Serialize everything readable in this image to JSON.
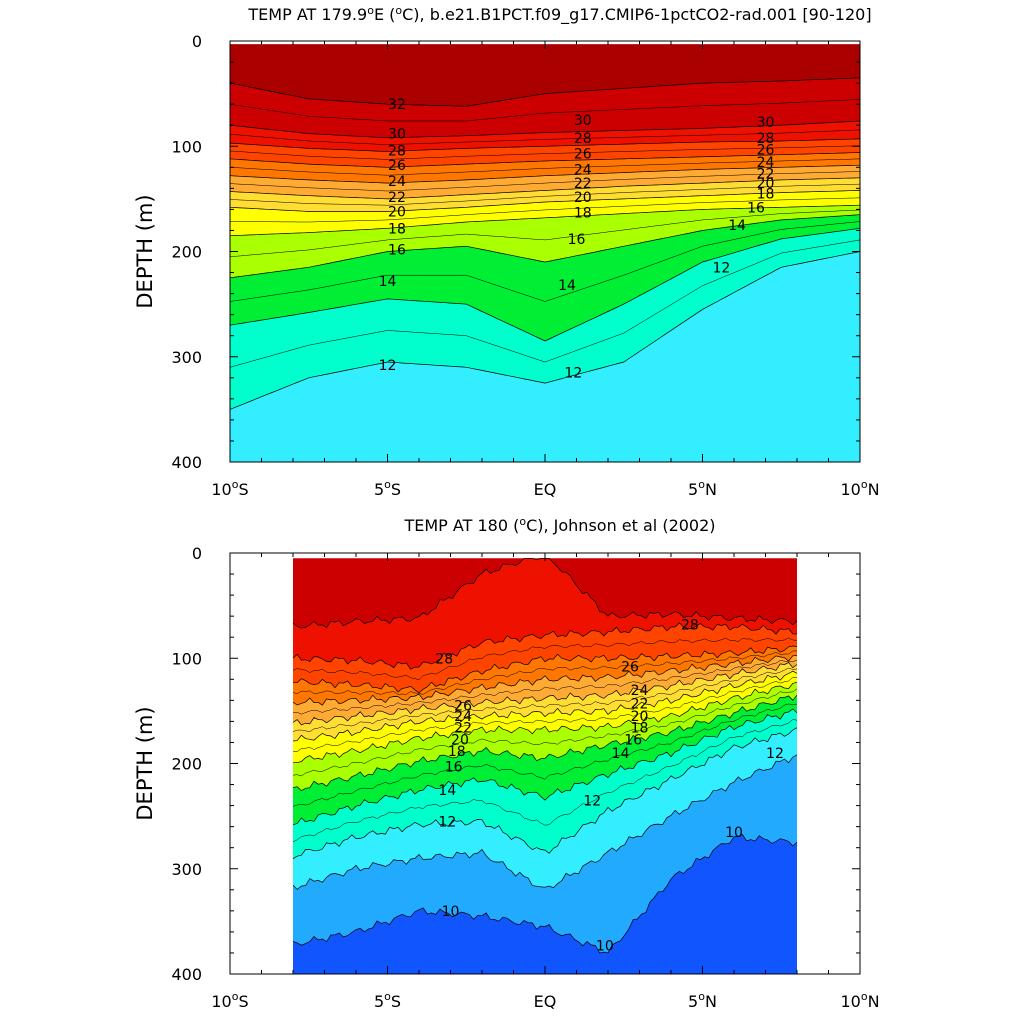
{
  "chart_data": [
    {
      "type": "heatmap",
      "title": "TEMP AT 179.9°E (°C), b.e21.B1PCT.f09_g17.CMIP6-1pctCO2-rad.001 [90-120]",
      "title_parts": [
        "TEMP AT 179.9",
        "o",
        "E (",
        "o",
        "C), b.e21.B1PCT.f09_g17.CMIP6-1pctCO2-rad.001 [90-120]"
      ],
      "ylabel": "DEPTH (m)",
      "xlim": [
        -10,
        10
      ],
      "ylim": [
        0,
        400
      ],
      "y_inverted": true,
      "data_xrange": [
        -10,
        10
      ],
      "x_ticks": [
        {
          "v": -10,
          "n": "10",
          "s": "S"
        },
        {
          "v": -5,
          "n": "5",
          "s": "S"
        },
        {
          "v": 0,
          "n": "EQ",
          "s": ""
        },
        {
          "v": 5,
          "n": "5",
          "s": "N"
        },
        {
          "v": 10,
          "n": "10",
          "s": "N"
        }
      ],
      "y_ticks": [
        0,
        100,
        200,
        300,
        400
      ],
      "contour_interval": 1,
      "isotherm_depths": {
        "x": [
          -10,
          -7.5,
          -5,
          -2.5,
          0,
          2.5,
          5,
          7.5,
          10
        ],
        "levels": {
          "32": [
            40,
            55,
            60,
            62,
            50,
            45,
            40,
            38,
            35
          ],
          "30": [
            80,
            88,
            92,
            90,
            87,
            85,
            83,
            80,
            76
          ],
          "28": [
            97,
            102,
            105,
            102,
            100,
            98,
            96,
            95,
            93
          ],
          "26": [
            112,
            117,
            120,
            117,
            114,
            112,
            110,
            108,
            106
          ],
          "24": [
            128,
            132,
            135,
            132,
            128,
            125,
            122,
            120,
            118
          ],
          "22": [
            143,
            147,
            150,
            146,
            142,
            138,
            135,
            132,
            130
          ],
          "20": [
            158,
            162,
            162,
            158,
            153,
            150,
            147,
            144,
            142
          ],
          "18": [
            185,
            182,
            178,
            172,
            168,
            164,
            160,
            158,
            156
          ],
          "16": [
            225,
            215,
            200,
            195,
            210,
            195,
            180,
            170,
            165
          ],
          "14": [
            270,
            258,
            245,
            250,
            285,
            250,
            210,
            188,
            178
          ],
          "12": [
            350,
            320,
            305,
            310,
            325,
            305,
            255,
            215,
            200
          ]
        }
      },
      "contour_labels": [
        {
          "v": 32,
          "x": -4.7,
          "d": 60
        },
        {
          "v": 30,
          "x": -4.7,
          "d": 88
        },
        {
          "v": 30,
          "x": 1.2,
          "d": 75
        },
        {
          "v": 30,
          "x": 7.0,
          "d": 77
        },
        {
          "v": 28,
          "x": -4.7,
          "d": 104
        },
        {
          "v": 28,
          "x": 1.2,
          "d": 92
        },
        {
          "v": 28,
          "x": 7.0,
          "d": 92
        },
        {
          "v": 26,
          "x": -4.7,
          "d": 118
        },
        {
          "v": 26,
          "x": 1.2,
          "d": 107
        },
        {
          "v": 26,
          "x": 7.0,
          "d": 103
        },
        {
          "v": 24,
          "x": -4.7,
          "d": 133
        },
        {
          "v": 24,
          "x": 1.2,
          "d": 122
        },
        {
          "v": 24,
          "x": 7.0,
          "d": 115
        },
        {
          "v": 22,
          "x": -4.7,
          "d": 148
        },
        {
          "v": 22,
          "x": 1.2,
          "d": 135
        },
        {
          "v": 22,
          "x": 7.0,
          "d": 126
        },
        {
          "v": 20,
          "x": -4.7,
          "d": 162
        },
        {
          "v": 20,
          "x": 1.2,
          "d": 148
        },
        {
          "v": 20,
          "x": 7.0,
          "d": 135
        },
        {
          "v": 18,
          "x": -4.7,
          "d": 178
        },
        {
          "v": 18,
          "x": 1.2,
          "d": 163
        },
        {
          "v": 18,
          "x": 7.0,
          "d": 145
        },
        {
          "v": 16,
          "x": -4.7,
          "d": 198
        },
        {
          "v": 16,
          "x": 1.0,
          "d": 188
        },
        {
          "v": 16,
          "x": 6.7,
          "d": 158
        },
        {
          "v": 14,
          "x": -5.0,
          "d": 228
        },
        {
          "v": 14,
          "x": 0.7,
          "d": 232
        },
        {
          "v": 14,
          "x": 6.1,
          "d": 175
        },
        {
          "v": 12,
          "x": -5.0,
          "d": 308
        },
        {
          "v": 12,
          "x": 0.9,
          "d": 315
        },
        {
          "v": 12,
          "x": 5.6,
          "d": 215
        }
      ]
    },
    {
      "type": "heatmap",
      "title": "TEMP AT 180 (°C), Johnson et al (2002)",
      "title_parts": [
        "TEMP AT 180 (",
        "o",
        "C), Johnson et al (2002)"
      ],
      "ylabel": "DEPTH (m)",
      "xlim": [
        -10,
        10
      ],
      "ylim": [
        0,
        400
      ],
      "y_inverted": true,
      "data_xrange": [
        -8,
        8
      ],
      "x_ticks": [
        {
          "v": -10,
          "n": "10",
          "s": "S"
        },
        {
          "v": -5,
          "n": "5",
          "s": "S"
        },
        {
          "v": 0,
          "n": "EQ",
          "s": ""
        },
        {
          "v": 5,
          "n": "5",
          "s": "N"
        },
        {
          "v": 10,
          "n": "10",
          "s": "N"
        }
      ],
      "y_ticks": [
        0,
        100,
        200,
        300,
        400
      ],
      "contour_interval": 1,
      "isotherm_depths": {
        "x": [
          -8,
          -6,
          -4,
          -2,
          0,
          2,
          4,
          6,
          8
        ],
        "levels": {
          "29": [
            70,
            65,
            62,
            20,
            0,
            60,
            58,
            62,
            65
          ],
          "28": [
            100,
            102,
            108,
            85,
            78,
            75,
            70,
            70,
            75
          ],
          "26": [
            122,
            125,
            130,
            112,
            100,
            100,
            98,
            95,
            90
          ],
          "24": [
            142,
            140,
            137,
            128,
            120,
            118,
            112,
            105,
            98
          ],
          "22": [
            162,
            155,
            148,
            142,
            138,
            135,
            126,
            115,
            105
          ],
          "20": [
            178,
            170,
            160,
            155,
            152,
            150,
            140,
            126,
            114
          ],
          "18": [
            198,
            188,
            176,
            168,
            168,
            165,
            155,
            138,
            124
          ],
          "16": [
            225,
            212,
            198,
            188,
            195,
            182,
            170,
            152,
            135
          ],
          "14": [
            258,
            240,
            225,
            215,
            232,
            210,
            190,
            165,
            150
          ],
          "12": [
            288,
            270,
            258,
            255,
            285,
            245,
            215,
            185,
            168
          ],
          "11": [
            318,
            300,
            290,
            285,
            320,
            285,
            250,
            218,
            192
          ],
          "10": [
            372,
            360,
            340,
            345,
            355,
            380,
            310,
            270,
            275
          ]
        }
      },
      "contour_labels": [
        {
          "v": 28,
          "x": -3.2,
          "d": 100
        },
        {
          "v": 28,
          "x": 4.6,
          "d": 68
        },
        {
          "v": 26,
          "x": -2.6,
          "d": 145
        },
        {
          "v": 26,
          "x": 2.7,
          "d": 108
        },
        {
          "v": 24,
          "x": -2.6,
          "d": 155
        },
        {
          "v": 24,
          "x": 3.0,
          "d": 130
        },
        {
          "v": 22,
          "x": -2.6,
          "d": 166
        },
        {
          "v": 22,
          "x": 3.0,
          "d": 143
        },
        {
          "v": 20,
          "x": -2.7,
          "d": 177
        },
        {
          "v": 20,
          "x": 3.0,
          "d": 155
        },
        {
          "v": 18,
          "x": -2.8,
          "d": 188
        },
        {
          "v": 18,
          "x": 3.0,
          "d": 166
        },
        {
          "v": 16,
          "x": -2.9,
          "d": 203
        },
        {
          "v": 16,
          "x": 2.8,
          "d": 177
        },
        {
          "v": 14,
          "x": -3.1,
          "d": 225
        },
        {
          "v": 14,
          "x": 2.4,
          "d": 190
        },
        {
          "v": 12,
          "x": -3.1,
          "d": 255
        },
        {
          "v": 12,
          "x": 1.5,
          "d": 235
        },
        {
          "v": 12,
          "x": 7.3,
          "d": 190
        },
        {
          "v": 10,
          "x": -3.0,
          "d": 340
        },
        {
          "v": 10,
          "x": 1.9,
          "d": 373
        },
        {
          "v": 10,
          "x": 6.0,
          "d": 265
        }
      ]
    }
  ],
  "colors": {
    "gt32": "#aa0000",
    "30": "#cc0000",
    "28": "#ee1100",
    "26": "#ff4400",
    "24": "#ff7700",
    "22": "#ffaa33",
    "20": "#ffdd33",
    "18": "#ffff00",
    "16": "#aaff00",
    "14": "#00ee33",
    "12": "#00ffcc",
    "11": "#33eeff",
    "10": "#22aaff",
    "lt10": "#1155ff"
  }
}
